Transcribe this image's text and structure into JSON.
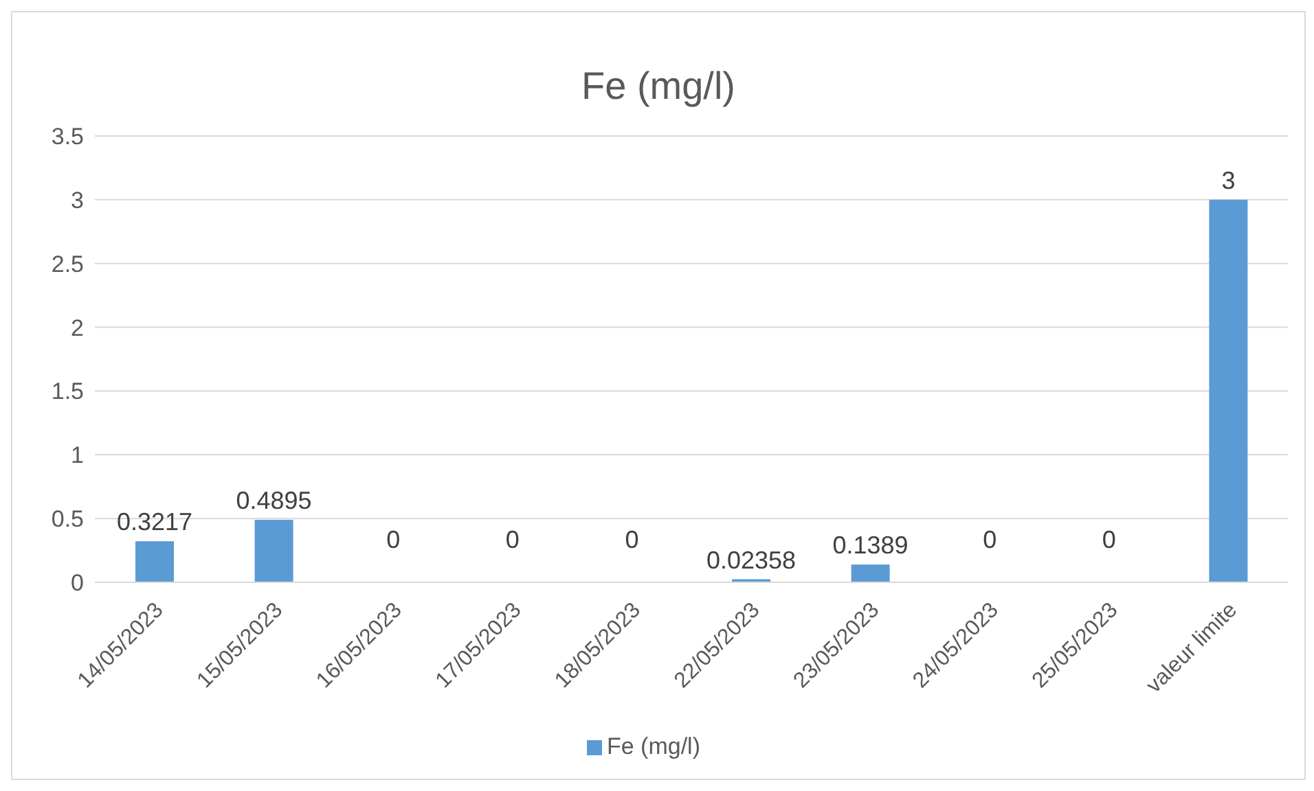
{
  "chart_data": {
    "type": "bar",
    "title": "Fe (mg/l)",
    "categories": [
      "14/05/2023",
      "15/05/2023",
      "16/05/2023",
      "17/05/2023",
      "18/05/2023",
      "22/05/2023",
      "23/05/2023",
      "24/05/2023",
      "25/05/2023",
      "valeur limite"
    ],
    "series": [
      {
        "name": "Fe (mg/l)",
        "color": "#5b9bd5",
        "values": [
          0.3217,
          0.4895,
          0,
          0,
          0,
          0.02358,
          0.1389,
          0,
          0,
          3
        ]
      }
    ],
    "ylim": [
      0,
      3.5
    ],
    "yticks": [
      0,
      0.5,
      1,
      1.5,
      2,
      2.5,
      3,
      3.5
    ],
    "grid": "y",
    "legend": "bottom",
    "data_labels": true
  }
}
